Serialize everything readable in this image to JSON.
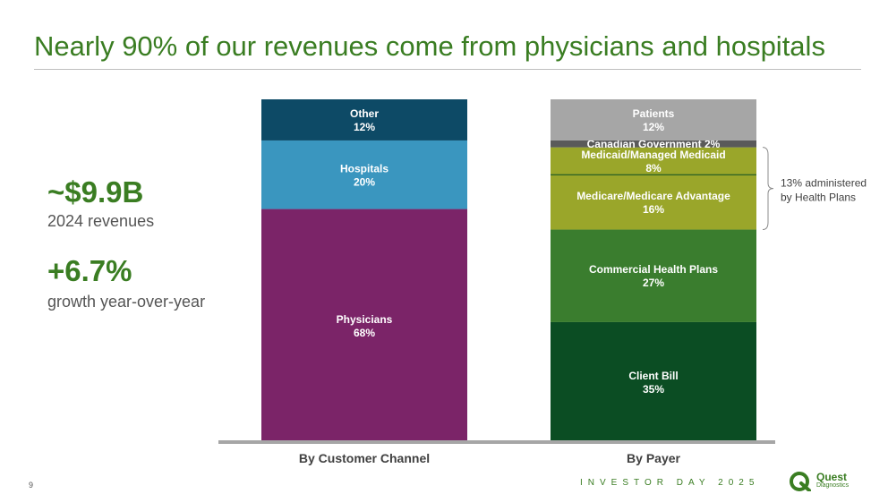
{
  "title": "Nearly 90% of our revenues come from physicians and hospitals",
  "kpis": {
    "revenue_value": "~$9.9B",
    "revenue_label": "2024 revenues",
    "growth_value": "+6.7%",
    "growth_label": "growth year-over-year"
  },
  "chart_data": {
    "type": "bar",
    "stacked": true,
    "categories": [
      "By Customer Channel",
      "By Payer"
    ],
    "stacks": [
      {
        "category": "By Customer Channel",
        "segments": [
          {
            "name": "Physicians",
            "value": 68,
            "label": "68%",
            "color": "#7b2468"
          },
          {
            "name": "Hospitals",
            "value": 20,
            "label": "20%",
            "color": "#3a96bf"
          },
          {
            "name": "Other",
            "value": 12,
            "label": "12%",
            "color": "#0d4a66"
          }
        ]
      },
      {
        "category": "By Payer",
        "segments": [
          {
            "name": "Client Bill",
            "value": 35,
            "label": "35%",
            "color": "#0b4d23"
          },
          {
            "name": "Commercial Health Plans",
            "value": 27,
            "label": "27%",
            "color": "#3a7d2e"
          },
          {
            "name": "Medicare/Medicare Advantage",
            "value": 16,
            "label": "16%",
            "color": "#9aa62a"
          },
          {
            "name": "Medicaid/Managed Medicaid",
            "value": 8,
            "label": "8%",
            "color": "#9aa62a"
          },
          {
            "name": "Canadian Government",
            "value": 2,
            "label": "2%",
            "color": "#5a5a5a",
            "inline": true
          },
          {
            "name": "Patients",
            "value": 12,
            "label": "12%",
            "color": "#a6a6a6"
          }
        ]
      }
    ],
    "annotation": {
      "lines": [
        "13% administered",
        "by Health Plans"
      ],
      "spans": [
        "Medicare/Medicare Advantage",
        "Medicaid/Managed Medicaid"
      ]
    },
    "ylim": [
      0,
      100
    ]
  },
  "footer": {
    "page_number": "9",
    "event": "INVESTOR DAY 2025",
    "logo_name": "Quest",
    "logo_sub": "Diagnostics"
  },
  "colors": {
    "accent": "#3a7d22"
  }
}
